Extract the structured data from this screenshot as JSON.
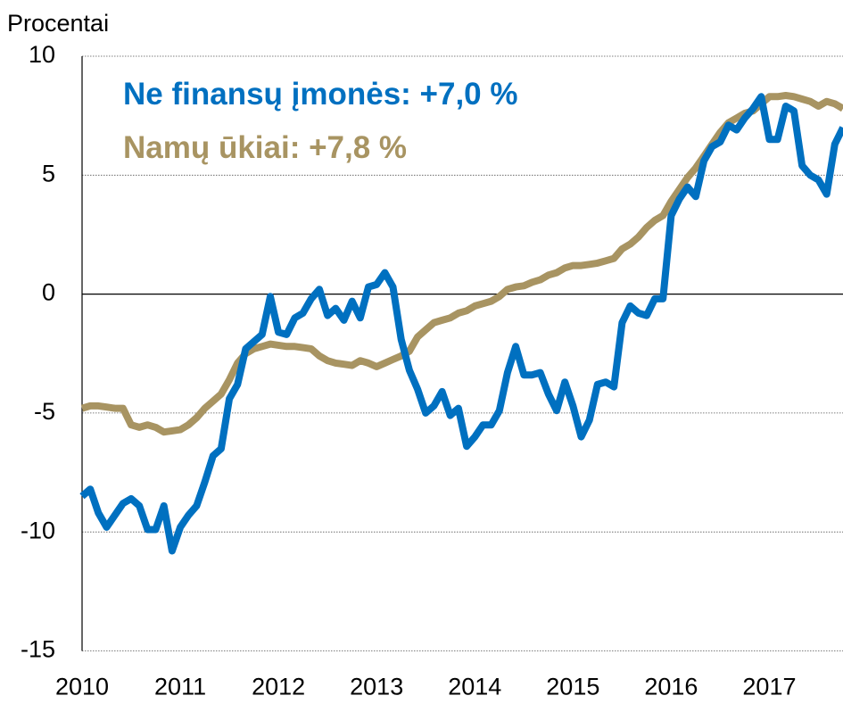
{
  "chart_data": {
    "type": "line",
    "y_label": "Procentai",
    "categories": [
      "2010",
      null,
      null,
      null,
      null,
      null,
      null,
      null,
      null,
      null,
      null,
      null,
      "2011",
      null,
      null,
      null,
      null,
      null,
      null,
      null,
      null,
      null,
      null,
      null,
      "2012",
      null,
      null,
      null,
      null,
      null,
      null,
      null,
      null,
      null,
      null,
      null,
      "2013",
      null,
      null,
      null,
      null,
      null,
      null,
      null,
      null,
      null,
      null,
      null,
      "2014",
      null,
      null,
      null,
      null,
      null,
      null,
      null,
      null,
      null,
      null,
      null,
      "2015",
      null,
      null,
      null,
      null,
      null,
      null,
      null,
      null,
      null,
      null,
      null,
      "2016",
      null,
      null,
      null,
      null,
      null,
      null,
      null,
      null,
      null,
      null,
      null,
      "2017",
      null,
      null,
      null,
      null,
      null,
      null,
      null,
      null,
      null
    ],
    "series": [
      {
        "name": "Ne finansų įmonės: +7,0 %",
        "color": "#0070c0",
        "values": [
          -8.5,
          -8.2,
          -9.2,
          -9.8,
          -9.3,
          -8.8,
          -8.6,
          -8.9,
          -9.9,
          -9.9,
          -8.9,
          -10.8,
          -9.8,
          -9.3,
          -8.9,
          -7.9,
          -6.8,
          -6.5,
          -4.4,
          -3.8,
          -2.3,
          -2.0,
          -1.7,
          -0.1,
          -1.6,
          -1.7,
          -1.0,
          -0.8,
          -0.2,
          0.2,
          -0.9,
          -0.6,
          -1.1,
          -0.3,
          -1.0,
          0.3,
          0.4,
          0.9,
          0.3,
          -1.9,
          -3.2,
          -4.0,
          -5.0,
          -4.7,
          -4.1,
          -5.1,
          -4.8,
          -6.4,
          -6.0,
          -5.5,
          -5.5,
          -4.9,
          -3.3,
          -2.2,
          -3.4,
          -3.4,
          -3.3,
          -4.2,
          -4.9,
          -3.7,
          -4.7,
          -6.0,
          -5.3,
          -3.8,
          -3.7,
          -3.9,
          -1.2,
          -0.5,
          -0.8,
          -0.9,
          -0.2,
          -0.2,
          3.3,
          4.0,
          4.5,
          4.1,
          5.6,
          6.2,
          6.4,
          7.1,
          6.9,
          7.4,
          7.8,
          8.3,
          6.5,
          6.5,
          7.9,
          7.7,
          5.4,
          5.0,
          4.8,
          4.2,
          6.3,
          7.0
        ]
      },
      {
        "name": "Namų ūkiai: +7,8 %",
        "color": "#a89462",
        "values": [
          -4.8,
          -4.7,
          -4.7,
          -4.75,
          -4.8,
          -4.8,
          -5.5,
          -5.6,
          -5.5,
          -5.6,
          -5.8,
          -5.75,
          -5.7,
          -5.5,
          -5.2,
          -4.8,
          -4.5,
          -4.2,
          -3.6,
          -2.9,
          -2.5,
          -2.3,
          -2.2,
          -2.1,
          -2.15,
          -2.2,
          -2.2,
          -2.25,
          -2.3,
          -2.6,
          -2.8,
          -2.9,
          -2.95,
          -3.0,
          -2.8,
          -2.9,
          -3.05,
          -2.9,
          -2.75,
          -2.6,
          -2.4,
          -1.8,
          -1.5,
          -1.2,
          -1.1,
          -1.0,
          -0.8,
          -0.7,
          -0.5,
          -0.4,
          -0.3,
          -0.1,
          0.2,
          0.3,
          0.35,
          0.5,
          0.6,
          0.8,
          0.9,
          1.1,
          1.2,
          1.2,
          1.25,
          1.3,
          1.4,
          1.5,
          1.9,
          2.1,
          2.4,
          2.8,
          3.1,
          3.3,
          3.9,
          4.4,
          4.9,
          5.3,
          5.8,
          6.3,
          6.8,
          7.2,
          7.4,
          7.6,
          7.7,
          8.0,
          8.3,
          8.3,
          8.35,
          8.3,
          8.2,
          8.1,
          7.9,
          8.1,
          8.0,
          7.8
        ]
      }
    ],
    "ylim": [
      -15,
      10
    ],
    "yticks": [
      -15,
      -10,
      -5,
      0,
      5,
      10
    ],
    "grid": true
  }
}
